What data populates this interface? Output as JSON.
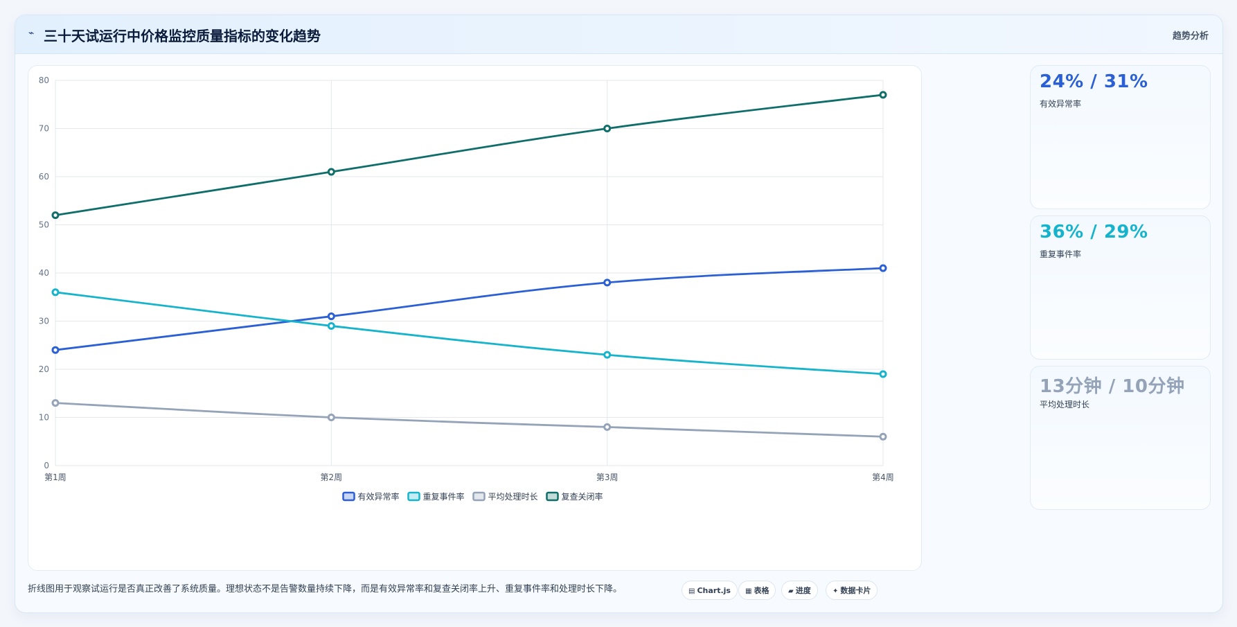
{
  "header": {
    "icon": "wave-icon",
    "title": "三十天试运行中价格监控质量指标的变化趋势",
    "link": "趋势分析"
  },
  "chart_data": {
    "type": "line",
    "categories": [
      "第1周",
      "第2周",
      "第3周",
      "第4周"
    ],
    "series": [
      {
        "name": "有效异常率",
        "values": [
          24,
          31,
          38,
          41
        ],
        "color": "#2b5fd4"
      },
      {
        "name": "重复事件率",
        "values": [
          36,
          29,
          23,
          19
        ],
        "color": "#16b3cc"
      },
      {
        "name": "平均处理时长",
        "values": [
          13,
          10,
          8,
          6
        ],
        "color": "#94a3b8"
      },
      {
        "name": "复查关闭率",
        "values": [
          52,
          61,
          70,
          77
        ],
        "color": "#0f6e69"
      }
    ],
    "ylim": [
      0,
      80
    ],
    "yticks": [
      0,
      10,
      20,
      30,
      40,
      50,
      60,
      70,
      80
    ],
    "grid": true,
    "legend": "bottom"
  },
  "stats": [
    {
      "value": "24% / 31%",
      "label": "有效异常率",
      "color": "#2b5fd4"
    },
    {
      "value": "36% / 29%",
      "label": "重复事件率",
      "color": "#16b3cc"
    },
    {
      "value": "13分钟 / 10分钟",
      "label": "平均处理时长",
      "color": "#94a3b8"
    }
  ],
  "footer": {
    "note": "折线图用于观察试运行是否真正改善了系统质量。理想状态不是告警数量持续下降，而是有效异常率和复查关闭率上升、重复事件率和处理时长下降。",
    "chips": [
      {
        "icon": "chart-icon",
        "glyph": "▤",
        "label": "Chart.js"
      },
      {
        "icon": "table-icon",
        "glyph": "▦",
        "label": "表格"
      },
      {
        "icon": "progress-icon",
        "glyph": "▰",
        "label": "进度"
      },
      {
        "icon": "card-icon",
        "glyph": "✦",
        "label": "数据卡片"
      }
    ]
  }
}
